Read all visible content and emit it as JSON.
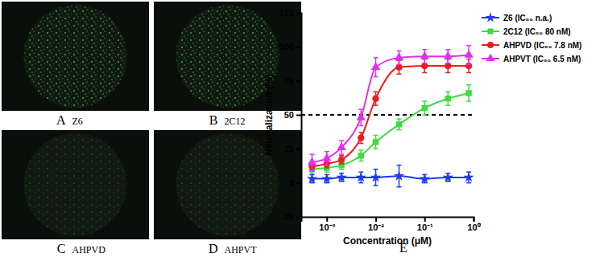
{
  "panels": [
    {
      "letter": "A",
      "name": "Z6"
    },
    {
      "letter": "B",
      "name": "2C12"
    },
    {
      "letter": "C",
      "name": "AHPVD"
    },
    {
      "letter": "D",
      "name": "AHPVT"
    }
  ],
  "chart_data": {
    "type": "line",
    "panel_label": "E",
    "x_label": "Concentration (μM)",
    "y_label": "Neutralization (%)",
    "log": "x",
    "grid": false,
    "legend": "right",
    "x": [
      0.0005,
      0.001,
      0.002,
      0.005,
      0.01,
      0.03,
      0.1,
      0.3,
      0.8
    ],
    "xlim": [
      0.0003,
      1
    ],
    "xticks": [
      {
        "value": 0.001,
        "label": "10⁻³"
      },
      {
        "value": 0.01,
        "label": "10⁻²"
      },
      {
        "value": 0.1,
        "label": "10⁻¹"
      },
      {
        "value": 1,
        "label": "10⁰"
      }
    ],
    "ylim": [
      -25,
      125
    ],
    "yticks": [
      -25,
      0,
      25,
      50,
      75,
      100,
      125
    ],
    "threshold": 50,
    "series": [
      {
        "name": "Z6 (IC₅₀ n.a.)",
        "color": "#1f3cf0",
        "marker": "star",
        "values": [
          3,
          3,
          4,
          4,
          4,
          5,
          3,
          4,
          4
        ],
        "errors": [
          3,
          3,
          3,
          4,
          6,
          8,
          3,
          3,
          4
        ]
      },
      {
        "name": "2C12 (IC₅₀ 80 nM)",
        "color": "#3ddc3d",
        "marker": "square",
        "values": [
          10,
          11,
          13,
          20,
          30,
          43,
          55,
          62,
          66
        ],
        "errors": [
          3,
          3,
          3,
          4,
          5,
          4,
          5,
          5,
          6
        ]
      },
      {
        "name": "AHPVD (IC₅₀ 7.8 nM)",
        "color": "#ee1c1c",
        "marker": "circle",
        "values": [
          12,
          14,
          17,
          33,
          62,
          85,
          86,
          86,
          86
        ],
        "errors": [
          3,
          3,
          3,
          4,
          5,
          5,
          5,
          5,
          5
        ]
      },
      {
        "name": "AHPVT (IC₅₀ 6.5 nM)",
        "color": "#e030f0",
        "marker": "triangle",
        "values": [
          15,
          18,
          26,
          48,
          85,
          92,
          93,
          93,
          94
        ],
        "errors": [
          6,
          5,
          5,
          6,
          7,
          5,
          5,
          5,
          7
        ]
      }
    ]
  }
}
